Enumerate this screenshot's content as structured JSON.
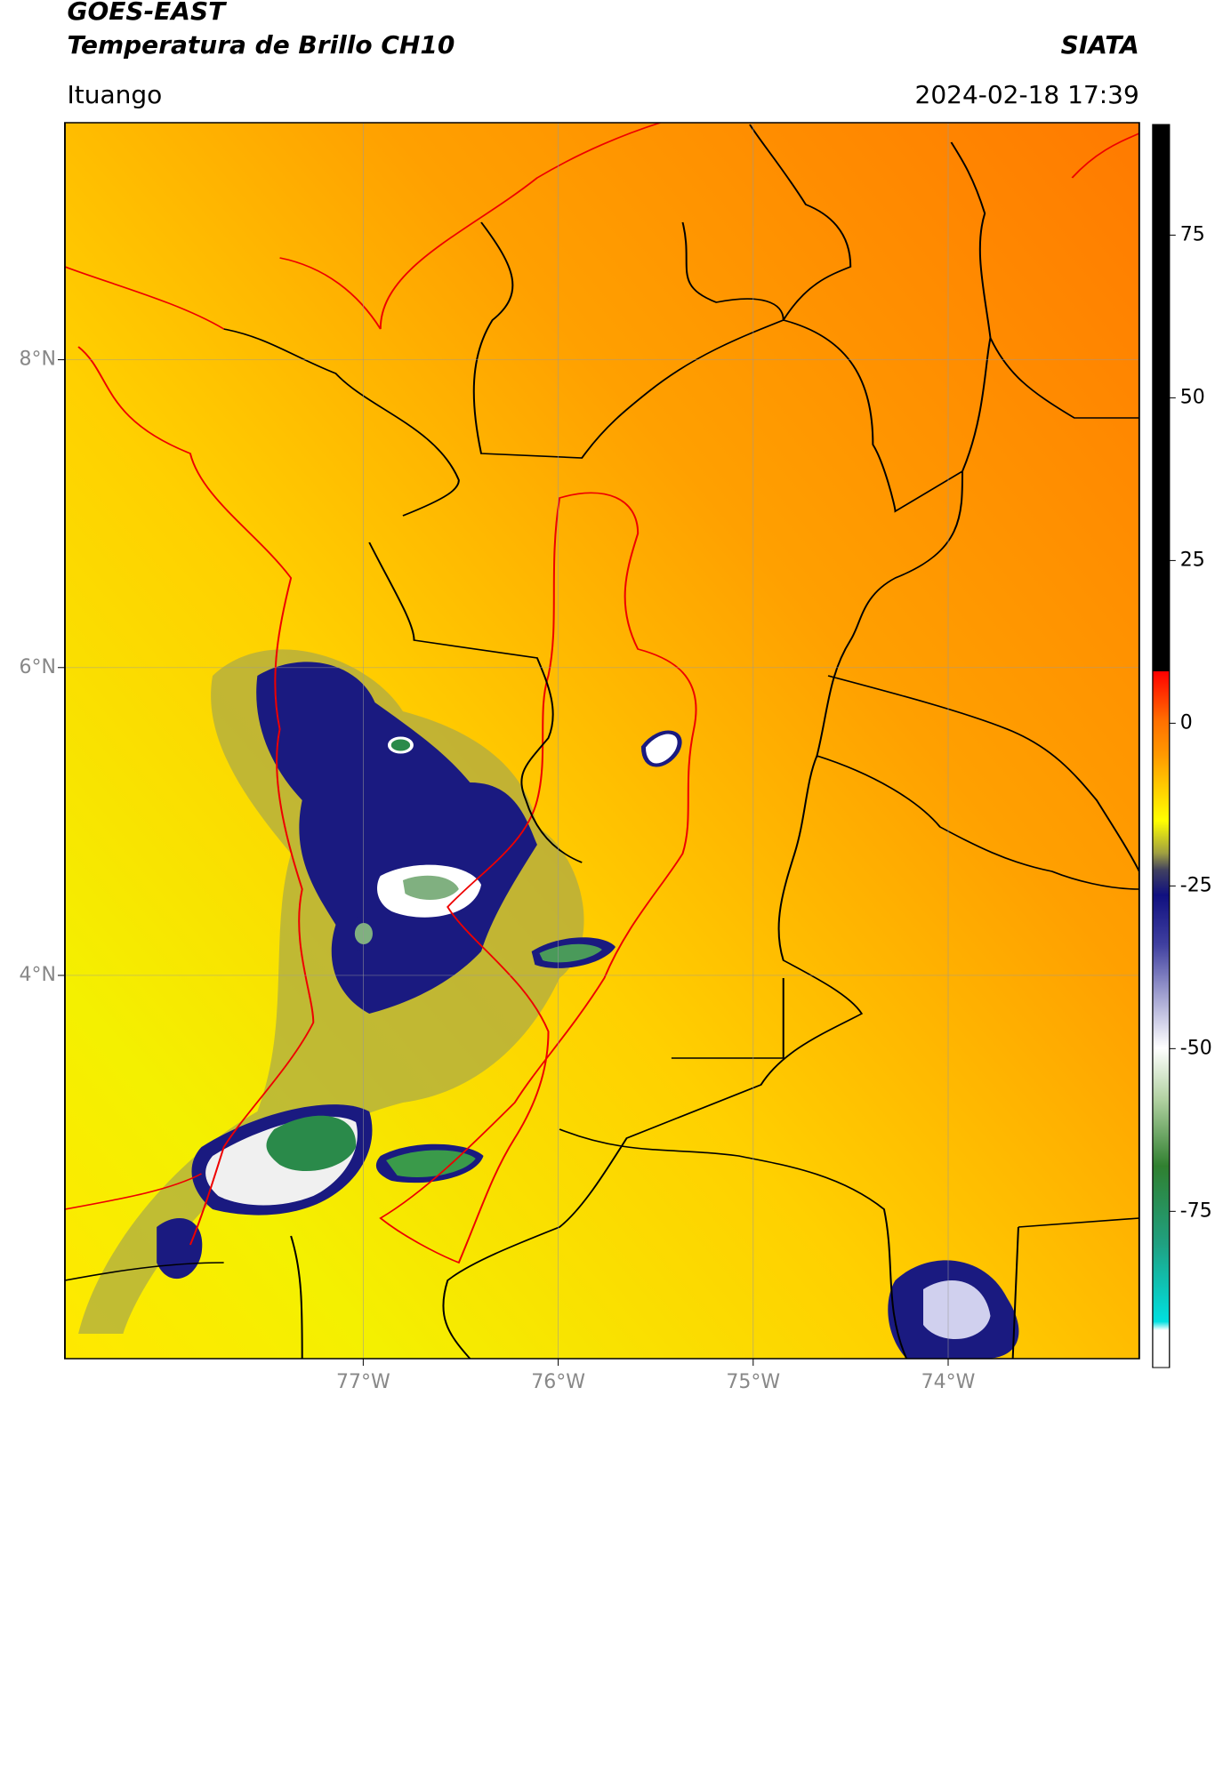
{
  "title": "GOES-EAST",
  "subtitle": "Temperatura de Brillo CH10",
  "source": "SIATA",
  "location": "Ituango",
  "datetime": "2024-02-18 17:39",
  "map": {
    "type": "map",
    "xlim": [
      -78.53,
      -73.02
    ],
    "ylim": [
      1.51,
      9.54
    ],
    "xticks": [
      {
        "value": -77,
        "label": "77°W"
      },
      {
        "value": -76,
        "label": "76°W"
      },
      {
        "value": -75,
        "label": "75°W"
      },
      {
        "value": -74,
        "label": "74°W"
      }
    ],
    "yticks": [
      {
        "value": 8,
        "label": "8°N"
      },
      {
        "value": 6,
        "label": "6°N"
      },
      {
        "value": 4,
        "label": "4°N"
      }
    ],
    "grid": true
  },
  "colorbar": {
    "lim": [
      -99,
      92
    ],
    "ticks": [
      75,
      50,
      25,
      0,
      -25,
      -50,
      -75
    ]
  }
}
